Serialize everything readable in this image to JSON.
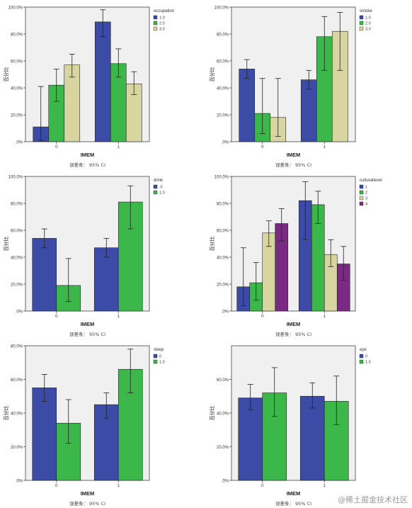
{
  "watermark": "@稀土掘金技术社区",
  "chart_data": [
    {
      "type": "bar",
      "xlabel": "IMEM",
      "ylabel": "百分比",
      "ylim": [
        0,
        100
      ],
      "yticks": [
        0,
        20,
        40,
        60,
        80,
        100
      ],
      "ytick_labels": [
        ".0%",
        "20.0%",
        "40.0%",
        "60.0%",
        "80.0%",
        "100.0%"
      ],
      "categories": [
        "0",
        "1"
      ],
      "legend_title": "occupation",
      "legend_position": "top-right",
      "footnote": "误差条： 95% CI",
      "series": [
        {
          "name": "1.0",
          "values": [
            11,
            89
          ],
          "ci_low": [
            1,
            78
          ],
          "ci_high": [
            41,
            98
          ]
        },
        {
          "name": "2.0",
          "values": [
            42,
            58
          ],
          "ci_low": [
            30,
            48
          ],
          "ci_high": [
            54,
            69
          ]
        },
        {
          "name": "3.0",
          "values": [
            57,
            43
          ],
          "ci_low": [
            48,
            35
          ],
          "ci_high": [
            65,
            52
          ]
        }
      ]
    },
    {
      "type": "bar",
      "xlabel": "IMEM",
      "ylabel": "百分比",
      "ylim": [
        0,
        100
      ],
      "yticks": [
        0,
        20,
        40,
        60,
        80,
        100
      ],
      "ytick_labels": [
        ".0%",
        "20.0%",
        "40.0%",
        "60.0%",
        "80.0%",
        "100.0%"
      ],
      "categories": [
        "0",
        "1"
      ],
      "legend_title": "smoke",
      "legend_position": "top-right",
      "footnote": "误差条： 95% CI",
      "series": [
        {
          "name": "1.0",
          "values": [
            54,
            46
          ],
          "ci_low": [
            47,
            39
          ],
          "ci_high": [
            61,
            53
          ]
        },
        {
          "name": "2.0",
          "values": [
            21,
            78
          ],
          "ci_low": [
            6,
            53
          ],
          "ci_high": [
            47,
            93
          ]
        },
        {
          "name": "3.0",
          "values": [
            18,
            82
          ],
          "ci_low": [
            4,
            53
          ],
          "ci_high": [
            47,
            96
          ]
        }
      ]
    },
    {
      "type": "bar",
      "xlabel": "IMEM",
      "ylabel": "百分比",
      "ylim": [
        0,
        100
      ],
      "yticks": [
        0,
        20,
        40,
        60,
        80,
        100
      ],
      "ytick_labels": [
        ".0%",
        "20.0%",
        "40.0%",
        "60.0%",
        "80.0%",
        "100.0%"
      ],
      "categories": [
        "0",
        "1"
      ],
      "legend_title": "drink",
      "legend_position": "top-right",
      "footnote": "误差条： 95% CI",
      "series": [
        {
          "name": ".0",
          "values": [
            54,
            47
          ],
          "ci_low": [
            47,
            40
          ],
          "ci_high": [
            61,
            54
          ]
        },
        {
          "name": "1.0",
          "values": [
            19,
            81
          ],
          "ci_low": [
            7,
            61
          ],
          "ci_high": [
            39,
            93
          ]
        }
      ]
    },
    {
      "type": "bar",
      "xlabel": "IMEM",
      "ylabel": "百分比",
      "ylim": [
        0,
        100
      ],
      "yticks": [
        0,
        20,
        40,
        60,
        80,
        100
      ],
      "ytick_labels": [
        ".0%",
        "20.0%",
        "40.0%",
        "60.0%",
        "80.0%",
        "100.0%"
      ],
      "categories": [
        "0",
        "1"
      ],
      "legend_title": "culturallevel",
      "legend_position": "top-right",
      "footnote": "误差条： 95% CI",
      "series": [
        {
          "name": "1",
          "values": [
            18,
            82
          ],
          "ci_low": [
            4,
            53
          ],
          "ci_high": [
            47,
            96
          ]
        },
        {
          "name": "2",
          "values": [
            21,
            79
          ],
          "ci_low": [
            8,
            65
          ],
          "ci_high": [
            36,
            89
          ]
        },
        {
          "name": "3",
          "values": [
            58,
            42
          ],
          "ci_low": [
            48,
            33
          ],
          "ci_high": [
            67,
            53
          ]
        },
        {
          "name": "4",
          "values": [
            65,
            35
          ],
          "ci_low": [
            52,
            23
          ],
          "ci_high": [
            76,
            48
          ]
        }
      ]
    },
    {
      "type": "bar",
      "xlabel": "IMEM",
      "ylabel": "百分比",
      "ylim": [
        0,
        80
      ],
      "yticks": [
        0,
        20,
        40,
        60,
        80
      ],
      "ytick_labels": [
        ".0%",
        "20.0%",
        "40.0%",
        "60.0%",
        "80.0%"
      ],
      "categories": [
        "0",
        "1"
      ],
      "legend_title": "sleep",
      "legend_position": "top-right",
      "footnote": "误差条： 95% CI",
      "series": [
        {
          "name": "0",
          "values": [
            55,
            45
          ],
          "ci_low": [
            47,
            37
          ],
          "ci_high": [
            63,
            52
          ]
        },
        {
          "name": "1.0",
          "values": [
            34,
            66
          ],
          "ci_low": [
            22,
            52
          ],
          "ci_high": [
            48,
            78
          ]
        }
      ]
    },
    {
      "type": "bar",
      "xlabel": "IMEM",
      "ylabel": "百分比",
      "ylim": [
        0,
        80
      ],
      "yticks": [
        0,
        20,
        40,
        60
      ],
      "ytick_labels": [
        ".0%",
        "20.0%",
        "40.0%",
        "60.0%"
      ],
      "categories": [
        "0",
        "1"
      ],
      "legend_title": "eye",
      "legend_position": "top-right",
      "footnote": "误差条： 95% CI",
      "series": [
        {
          "name": "0",
          "values": [
            49,
            50
          ],
          "ci_low": [
            42,
            43
          ],
          "ci_high": [
            57,
            58
          ]
        },
        {
          "name": "1.0",
          "values": [
            52,
            47
          ],
          "ci_low": [
            38,
            33
          ],
          "ci_high": [
            67,
            62
          ]
        }
      ]
    }
  ],
  "colors": {
    "series": [
      "#3b4ba6",
      "#3cb84a",
      "#d9d5a0",
      "#7b2a84"
    ],
    "plot_bg": "#f0f0f0",
    "axis": "#444444"
  }
}
